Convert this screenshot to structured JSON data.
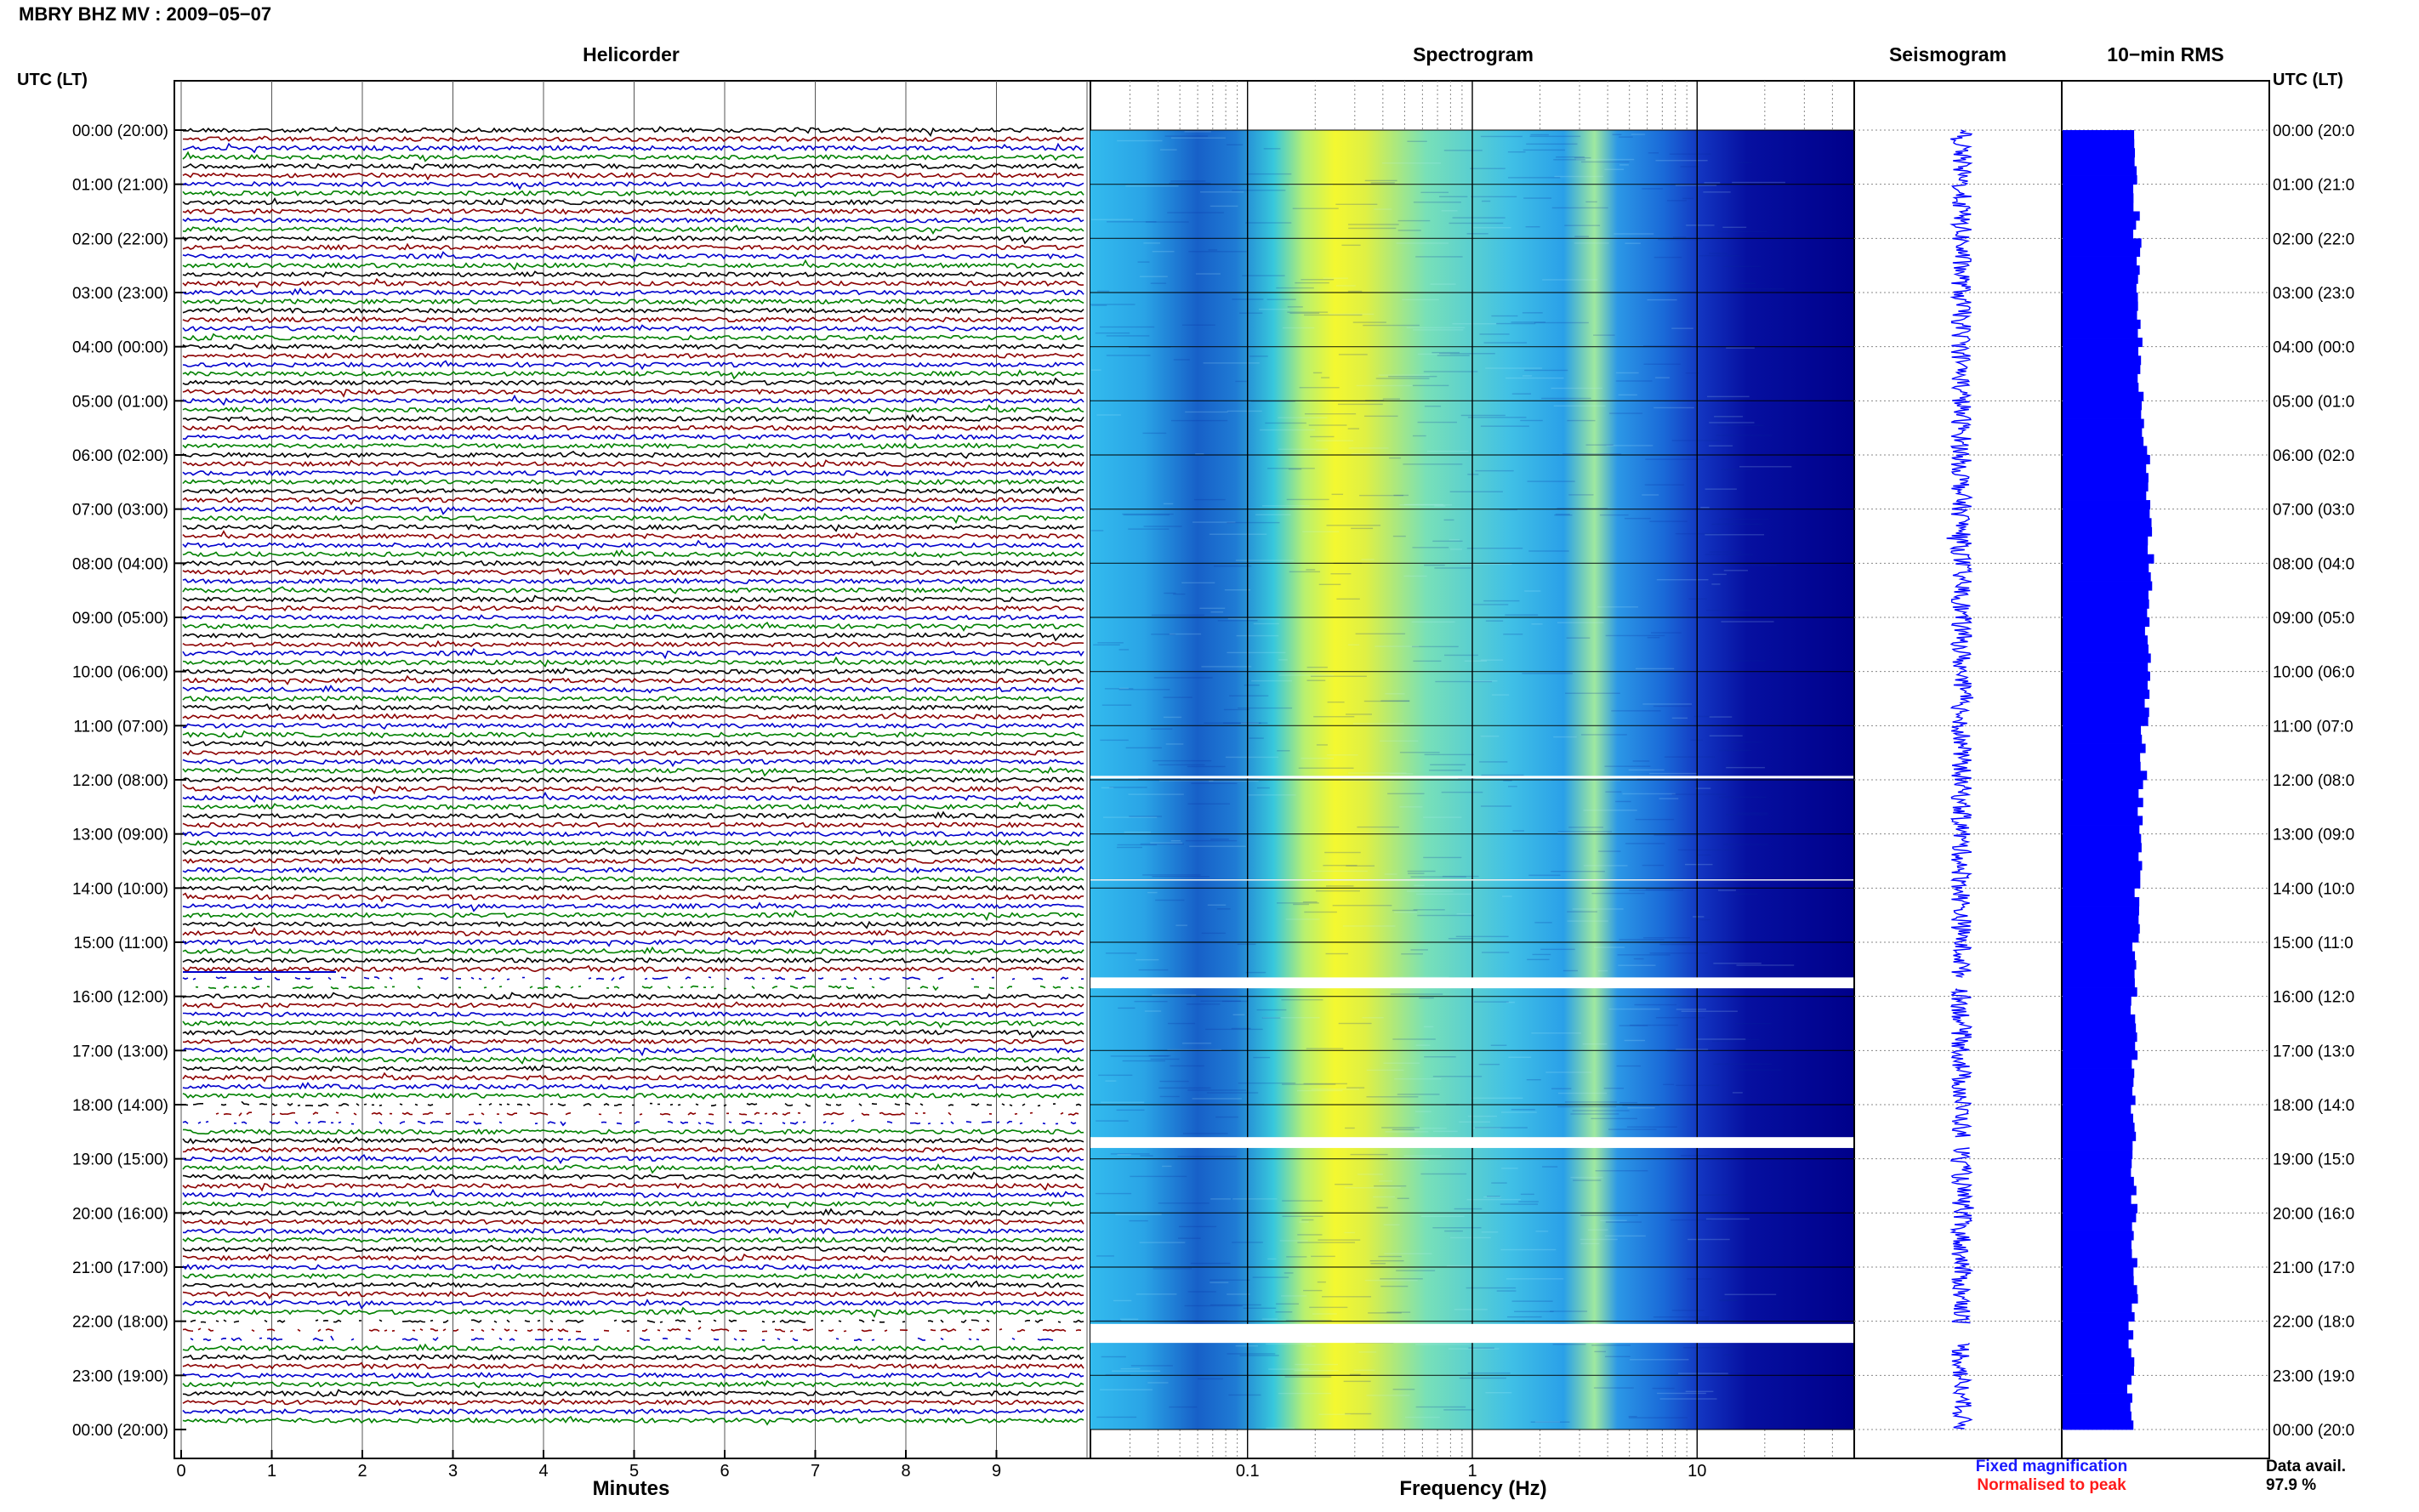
{
  "header": {
    "title": "MBRY BHZ MV : 2009−05−07"
  },
  "panels": {
    "helicorder_title": "Helicorder",
    "spectrogram_title": "Spectrogram",
    "seismogram_title": "Seismogram",
    "rms_title": "10−min RMS"
  },
  "axes": {
    "left_header": "UTC (LT)",
    "right_header": "UTC (LT)",
    "hour_labels": [
      "00:00 (20:00)",
      "01:00 (21:00)",
      "02:00 (22:00)",
      "03:00 (23:00)",
      "04:00 (00:00)",
      "05:00 (01:00)",
      "06:00 (02:00)",
      "07:00 (03:00)",
      "08:00 (04:00)",
      "09:00 (05:00)",
      "10:00 (06:00)",
      "11:00 (07:00)",
      "12:00 (08:00)",
      "13:00 (09:00)",
      "14:00 (10:00)",
      "15:00 (11:00)",
      "16:00 (12:00)",
      "17:00 (13:00)",
      "18:00 (14:00)",
      "19:00 (15:00)",
      "20:00 (16:00)",
      "21:00 (17:00)",
      "22:00 (18:00)",
      "23:00 (19:00)",
      "00:00 (20:00)"
    ],
    "right_hour_labels": [
      "00:00 (20:0",
      "01:00 (21:0",
      "02:00 (22:0",
      "03:00 (23:0",
      "04:00 (00:0",
      "05:00 (01:0",
      "06:00 (02:0",
      "07:00 (03:0",
      "08:00 (04:0",
      "09:00 (05:0",
      "10:00 (06:0",
      "11:00 (07:0",
      "12:00 (08:0",
      "13:00 (09:0",
      "14:00 (10:0",
      "15:00 (11:0",
      "16:00 (12:0",
      "17:00 (13:0",
      "18:00 (14:0",
      "19:00 (15:0",
      "20:00 (16:0",
      "21:00 (17:0",
      "22:00 (18:0",
      "23:00 (19:0",
      "00:00 (20:0"
    ],
    "minutes_label": "Minutes",
    "minute_ticks": [
      "0",
      "1",
      "2",
      "3",
      "4",
      "5",
      "6",
      "7",
      "8",
      "9"
    ],
    "frequency_label": "Frequency (Hz)",
    "frequency_ticks": [
      "0.1",
      "1",
      "10"
    ]
  },
  "legend": {
    "fixed": "Fixed magnification",
    "normalised": "Normalised to peak",
    "fixed_color": "#1a1aff",
    "normalised_color": "#ff1a1a"
  },
  "availability": {
    "label": "Data avail.",
    "value": "97.9 %"
  },
  "colors": {
    "trace_cycle": [
      "#000000",
      "#8b0000",
      "#0000cc",
      "#008000"
    ],
    "spectro_dark": "#00008b",
    "rms_bar": "#0000ff",
    "seismo_trace": "#0000ff"
  },
  "chart_data": {
    "type": "heatmap",
    "components": [
      "helicorder",
      "spectrogram",
      "seismogram",
      "rms"
    ],
    "helicorder": {
      "x_unit": "minutes",
      "xlim": [
        0,
        10
      ],
      "rows_per_hour": 6,
      "hours": 24,
      "trace_color_cycle": [
        "black",
        "dark red",
        "blue",
        "green"
      ],
      "gaps_hours_utc": [
        [
          15.65,
          15.85
        ],
        [
          18.0,
          18.35
        ],
        [
          21.95,
          22.35
        ]
      ]
    },
    "spectrogram": {
      "x_scale": "log",
      "xlim_hz": [
        0.02,
        50
      ],
      "x_ticks_hz": [
        0.1,
        1,
        10
      ],
      "colormap": "jet",
      "dominant_band_hz": [
        0.2,
        0.5
      ],
      "gaps_hours_utc": [
        [
          15.65,
          15.85
        ],
        [
          18.6,
          18.8
        ],
        [
          22.05,
          22.4
        ]
      ]
    },
    "rms": {
      "interval_minutes": 10,
      "relative_levels_by_hour": [
        0.62,
        0.62,
        0.64,
        0.65,
        0.66,
        0.68,
        0.73,
        0.74,
        0.73,
        0.72,
        0.71,
        0.68,
        0.66,
        0.64,
        0.62,
        0.6,
        0.6,
        0.6,
        0.59,
        0.6,
        0.6,
        0.61,
        0.58,
        0.57
      ]
    },
    "data_availability_percent": 97.9
  }
}
